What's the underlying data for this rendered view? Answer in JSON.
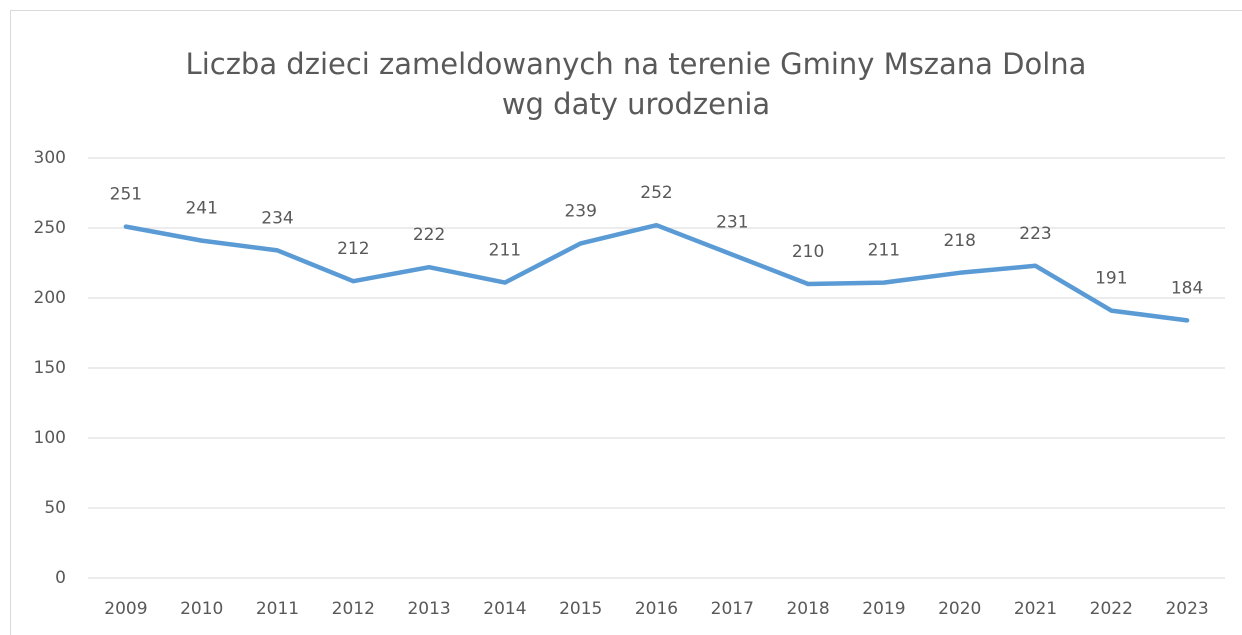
{
  "chart_data": {
    "type": "line",
    "title": [
      "Liczba dzieci zameldowanych na terenie Gminy Mszana Dolna",
      "wg daty urodzenia"
    ],
    "categories": [
      "2009",
      "2010",
      "2011",
      "2012",
      "2013",
      "2014",
      "2015",
      "2016",
      "2017",
      "2018",
      "2019",
      "2020",
      "2021",
      "2022",
      "2023"
    ],
    "values": [
      251,
      241,
      234,
      212,
      222,
      211,
      239,
      252,
      231,
      210,
      211,
      218,
      223,
      191,
      184
    ],
    "color": "#5b9bd5",
    "ylim": [
      0,
      300
    ],
    "yticks": [
      0,
      50,
      100,
      150,
      200,
      250,
      300
    ],
    "grid": true
  }
}
